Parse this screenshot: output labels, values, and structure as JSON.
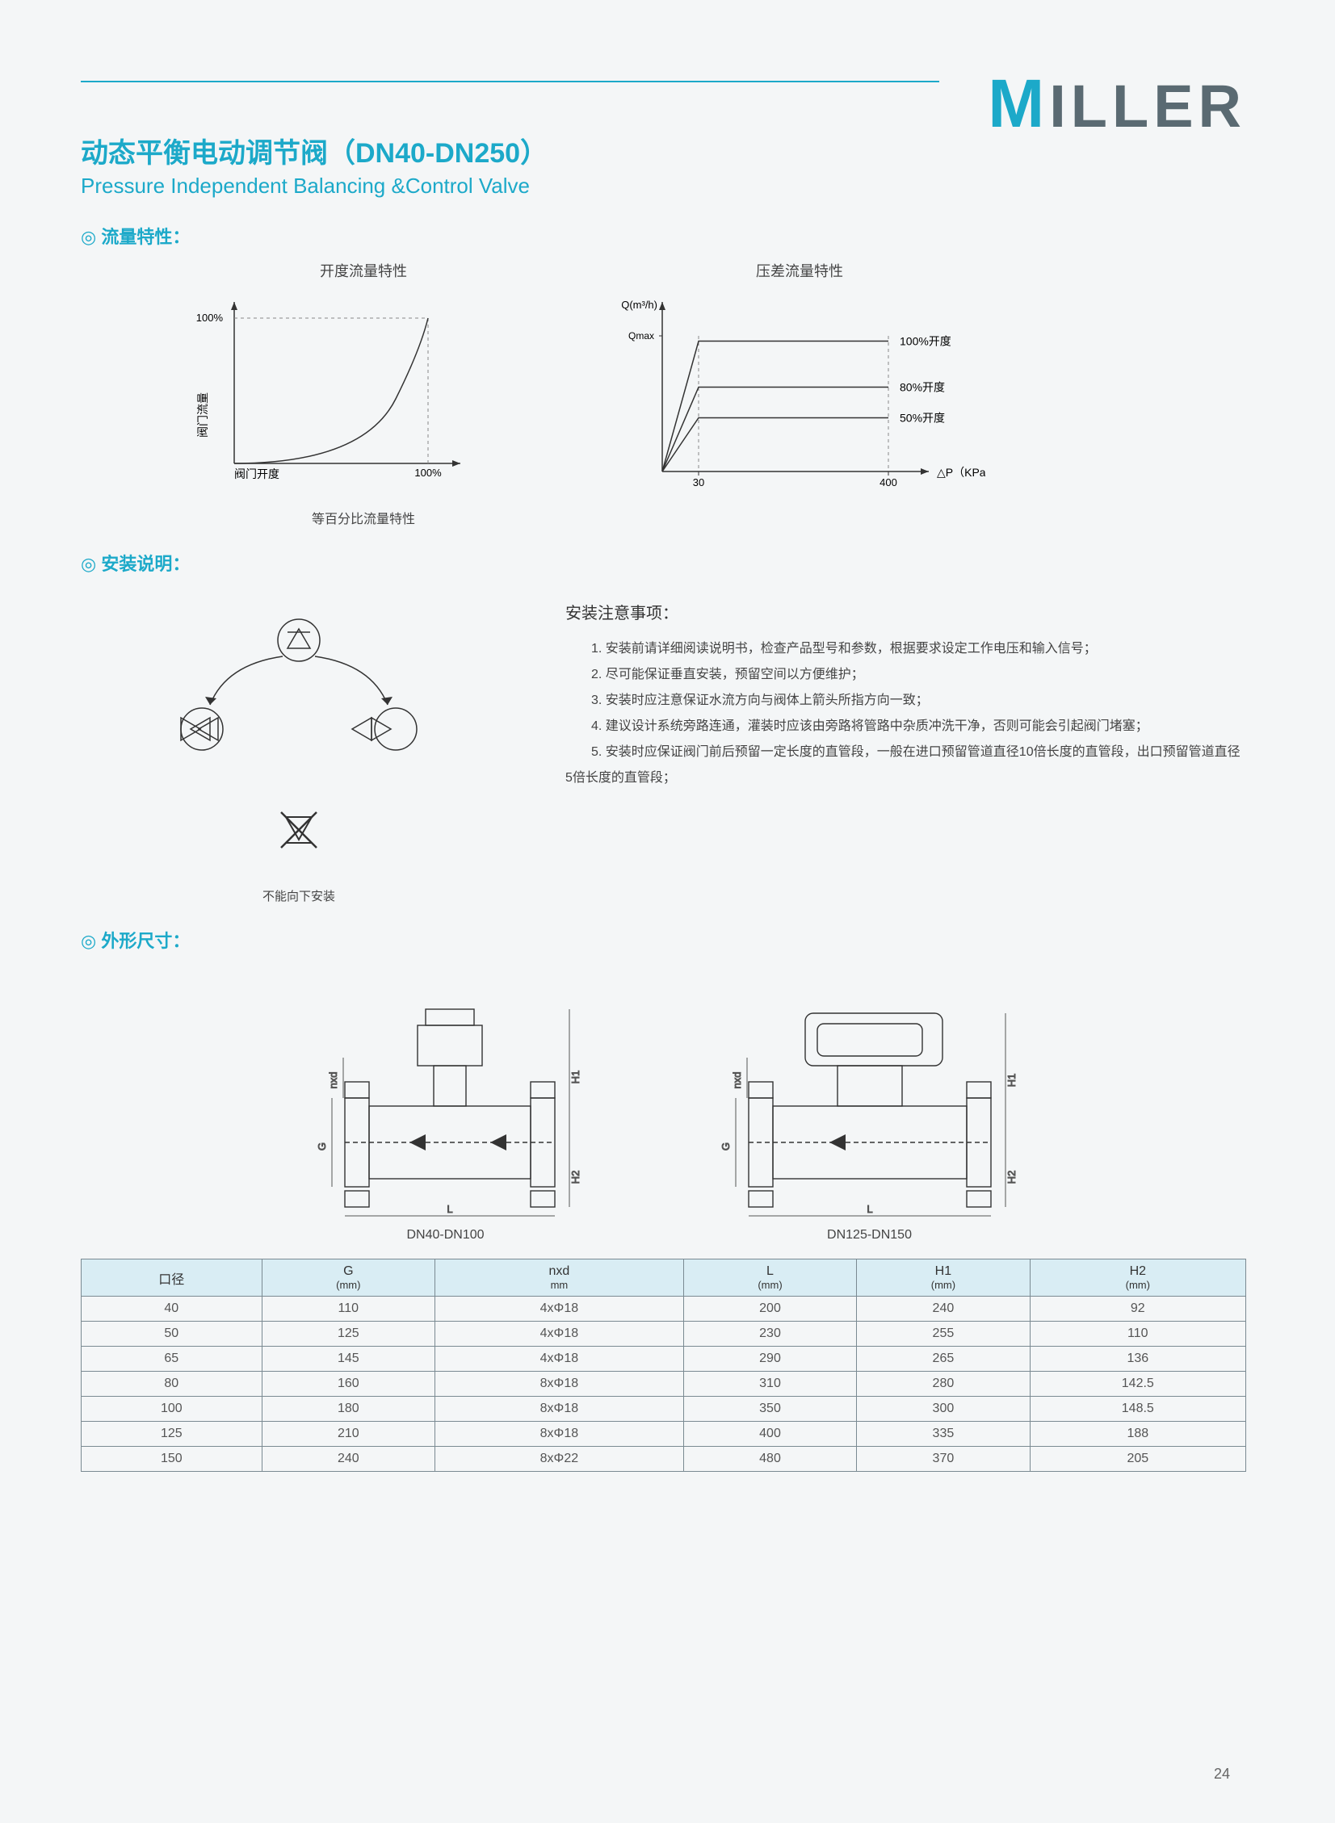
{
  "brand": {
    "first": "M",
    "rest": "ILLER"
  },
  "title_cn": "动态平衡电动调节阀（DN40-DN250）",
  "title_en": "Pressure Independent Balancing &Control Valve",
  "section_flow": "流量特性：",
  "section_install": "安装说明：",
  "section_dim": "外形尺寸：",
  "chart1": {
    "title": "开度流量特性",
    "xlabel": "阀门开度",
    "ylabel": "阀门流量",
    "x_tick_max": "100%",
    "y_tick_max": "100%",
    "subtitle": "等百分比流量特性",
    "axis_color": "#333",
    "curve_color": "#333",
    "dash_color": "#888",
    "font_size": 14
  },
  "chart2": {
    "title": "压差流量特性",
    "xlabel_unit": "△P（KPa）",
    "ylabel": "Q(m³/h)",
    "y_marker": "Qmax",
    "x_ticks": [
      "30",
      "400"
    ],
    "lines": [
      {
        "label": "100%开度",
        "level": 0.85
      },
      {
        "label": "80%开度",
        "level": 0.55
      },
      {
        "label": "50%开度",
        "level": 0.35
      }
    ],
    "axis_color": "#333",
    "curve_color": "#333",
    "dash_color": "#888",
    "font_size": 14
  },
  "install_diagram": {
    "no_down_label": "不能向下安装"
  },
  "install_notes": {
    "title": "安装注意事项：",
    "items": [
      "1. 安装前请详细阅读说明书，检查产品型号和参数，根据要求设定工作电压和输入信号；",
      "2. 尽可能保证垂直安装，预留空间以方便维护；",
      "3. 安装时应注意保证水流方向与阀体上箭头所指方向一致；",
      "4. 建议设计系统旁路连通，灌装时应该由旁路将管路中杂质冲洗干净，否则可能会引起阀门堵塞；",
      "5. 安装时应保证阀门前后预留一定长度的直管段，一般在进口预留管道直径10倍长度的直管段，出口预留管道直径5倍长度的直管段；"
    ]
  },
  "dim_drawings": {
    "left_label": "DN40-DN100",
    "right_label": "DN125-DN150",
    "dims": [
      "G",
      "nxd",
      "L",
      "H1",
      "H2"
    ]
  },
  "table": {
    "columns": [
      {
        "label": "口径",
        "unit": ""
      },
      {
        "label": "G",
        "unit": "(mm)"
      },
      {
        "label": "nxd",
        "unit": "mm"
      },
      {
        "label": "L",
        "unit": "(mm)"
      },
      {
        "label": "H1",
        "unit": "(mm)"
      },
      {
        "label": "H2",
        "unit": "(mm)"
      }
    ],
    "rows": [
      [
        "40",
        "110",
        "4xΦ18",
        "200",
        "240",
        "92"
      ],
      [
        "50",
        "125",
        "4xΦ18",
        "230",
        "255",
        "110"
      ],
      [
        "65",
        "145",
        "4xΦ18",
        "290",
        "265",
        "136"
      ],
      [
        "80",
        "160",
        "8xΦ18",
        "310",
        "280",
        "142.5"
      ],
      [
        "100",
        "180",
        "8xΦ18",
        "350",
        "300",
        "148.5"
      ],
      [
        "125",
        "210",
        "8xΦ18",
        "400",
        "335",
        "188"
      ],
      [
        "150",
        "240",
        "8xΦ22",
        "480",
        "370",
        "205"
      ]
    ]
  },
  "page_num": "24"
}
